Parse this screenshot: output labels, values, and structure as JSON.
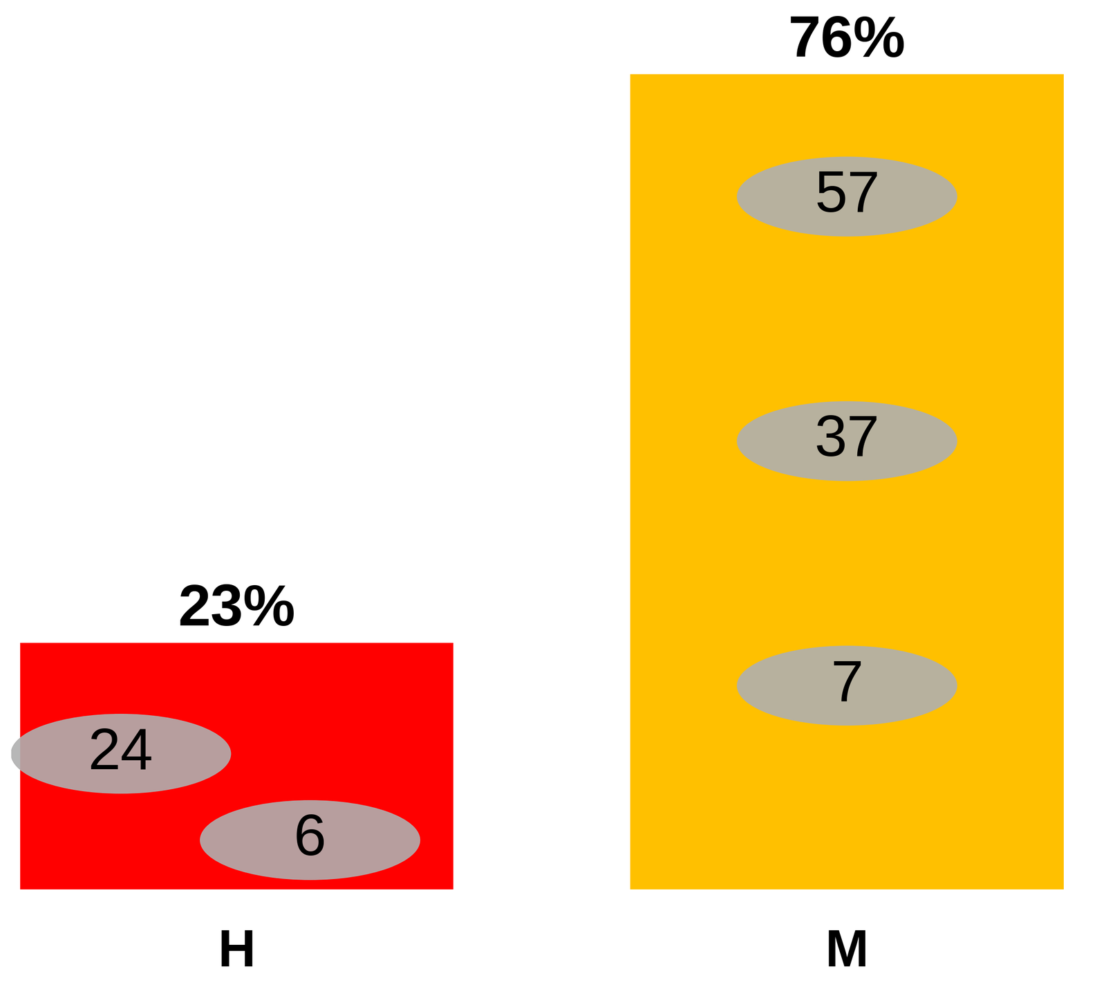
{
  "chart_data": {
    "type": "bar",
    "categories": [
      "H",
      "M"
    ],
    "values": [
      23,
      76
    ],
    "value_labels": [
      "23%",
      "76%"
    ],
    "data_labels": true,
    "colors": [
      "#ff0000",
      "#ffc000"
    ],
    "counts": [
      [
        24,
        6
      ],
      [
        57,
        37,
        7
      ]
    ],
    "ylim": [
      0,
      82
    ],
    "tick_labels": "x",
    "grid": false
  }
}
